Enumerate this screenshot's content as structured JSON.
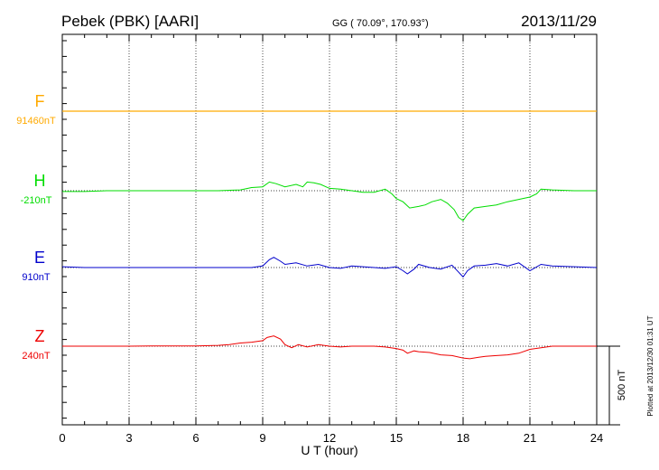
{
  "chart_data": {
    "type": "line",
    "title": "Pebek (PBK)  [AARI]",
    "subtitle": "GG ( 70.09°, 170.93°)",
    "date": "2013/11/29",
    "xlabel": "U T (hour)",
    "xlim": [
      0,
      24
    ],
    "xticks": [
      "0",
      "3",
      "6",
      "9",
      "12",
      "15",
      "18",
      "21",
      "24"
    ],
    "scale_label": "500 nT",
    "plotted_note": "Plotted at 2013/12/30 01:31  UT",
    "colors": {
      "F": "#ffaa00",
      "H": "#00dd00",
      "E": "#0000cc",
      "Z": "#ee0000"
    },
    "series": [
      {
        "name": "F",
        "baseline": "91460nT",
        "x": [
          0,
          3,
          6,
          9,
          12,
          15,
          18,
          21,
          24
        ],
        "y": [
          0,
          0,
          0,
          0,
          0,
          0,
          0,
          0,
          0
        ]
      },
      {
        "name": "H",
        "baseline": "-210nT",
        "x": [
          0,
          1,
          2,
          3,
          4,
          5,
          6,
          7,
          8,
          8.5,
          9.0,
          9.3,
          9.6,
          10.0,
          10.5,
          10.8,
          11.0,
          11.3,
          11.6,
          12.0,
          12.5,
          13.0,
          13.5,
          14.0,
          14.5,
          14.8,
          15.0,
          15.3,
          15.6,
          16.0,
          16.3,
          16.6,
          17.0,
          17.3,
          17.6,
          17.8,
          18.0,
          18.2,
          18.5,
          19.0,
          19.5,
          20.0,
          20.5,
          21.0,
          21.3,
          21.5,
          22.0,
          23.0,
          24.0
        ],
        "y": [
          -5,
          -5,
          0,
          0,
          0,
          0,
          0,
          0,
          5,
          20,
          25,
          55,
          45,
          25,
          40,
          25,
          55,
          50,
          40,
          15,
          10,
          0,
          -10,
          -10,
          10,
          -20,
          -50,
          -70,
          -110,
          -100,
          -90,
          -70,
          -55,
          -80,
          -120,
          -170,
          -190,
          -150,
          -110,
          -100,
          -90,
          -70,
          -55,
          -40,
          -20,
          10,
          5,
          0,
          0
        ]
      },
      {
        "name": "E",
        "baseline": "910nT",
        "x": [
          0,
          1,
          2,
          3,
          4,
          5,
          6,
          7,
          8,
          8.5,
          9.0,
          9.3,
          9.5,
          9.8,
          10.0,
          10.5,
          11.0,
          11.5,
          12.0,
          12.5,
          13.0,
          14.0,
          14.5,
          15.0,
          15.3,
          15.5,
          15.8,
          16.0,
          16.5,
          17.0,
          17.5,
          17.8,
          18.0,
          18.2,
          18.5,
          19.0,
          19.5,
          20.0,
          20.5,
          21.0,
          21.5,
          22.0,
          23.0,
          24.0
        ],
        "y": [
          5,
          0,
          0,
          0,
          0,
          0,
          0,
          0,
          0,
          0,
          10,
          50,
          65,
          40,
          20,
          30,
          10,
          20,
          0,
          -5,
          10,
          0,
          -5,
          5,
          -20,
          -40,
          -10,
          20,
          0,
          -10,
          15,
          -30,
          -60,
          -20,
          10,
          15,
          25,
          10,
          30,
          -20,
          20,
          10,
          5,
          0
        ]
      },
      {
        "name": "Z",
        "baseline": "240nT",
        "x": [
          0,
          1,
          2,
          3,
          4,
          5,
          6,
          7,
          7.5,
          8.0,
          8.5,
          9.0,
          9.2,
          9.5,
          9.8,
          10.0,
          10.3,
          10.6,
          11.0,
          11.5,
          12.0,
          12.5,
          13.0,
          14.0,
          14.5,
          15.0,
          15.3,
          15.5,
          15.8,
          16.0,
          16.5,
          17.0,
          17.5,
          18.0,
          18.3,
          18.7,
          19.0,
          19.5,
          20.0,
          20.5,
          21.0,
          21.5,
          22.0,
          23.0,
          24.0
        ],
        "y": [
          0,
          0,
          0,
          0,
          2,
          2,
          2,
          5,
          10,
          20,
          25,
          35,
          55,
          65,
          45,
          10,
          -10,
          10,
          -5,
          10,
          0,
          -5,
          0,
          0,
          -5,
          -15,
          -25,
          -45,
          -30,
          -35,
          -40,
          -55,
          -60,
          -75,
          -80,
          -70,
          -65,
          -60,
          -55,
          -45,
          -20,
          -10,
          0,
          0,
          0
        ]
      }
    ]
  }
}
